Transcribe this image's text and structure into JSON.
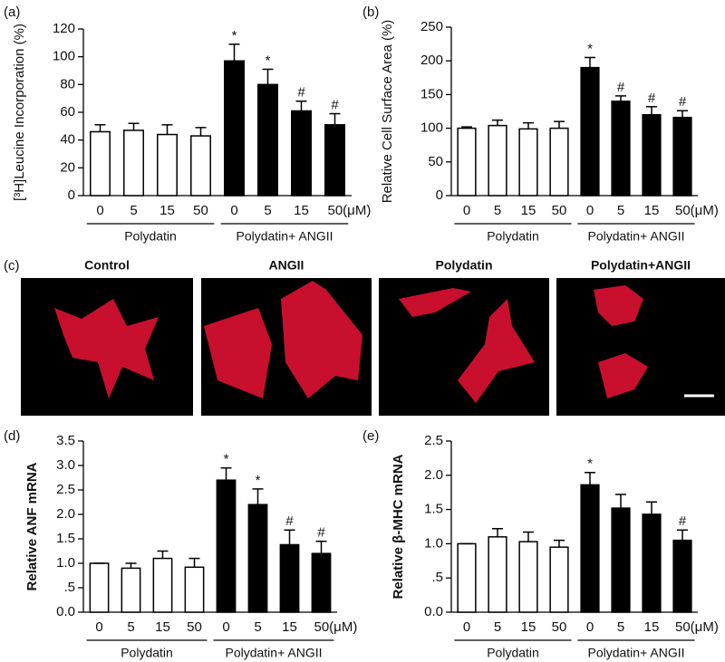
{
  "chart_data": [
    {
      "type": "bar",
      "panel_label": "(a)",
      "ylabel": "[³H]Leucine Incorporation (%)",
      "categories": [
        "0",
        "5",
        "15",
        "50",
        "0",
        "5",
        "15",
        "50(μM)"
      ],
      "values": [
        46,
        47,
        44,
        43,
        97,
        80,
        61,
        51
      ],
      "errors": [
        5,
        5,
        7,
        6,
        12,
        11,
        7,
        8
      ],
      "bar_colors": [
        "#ffffff",
        "#ffffff",
        "#ffffff",
        "#ffffff",
        "#000000",
        "#000000",
        "#000000",
        "#000000"
      ],
      "markers": [
        null,
        null,
        null,
        null,
        "*",
        "*",
        "#",
        "#"
      ],
      "groups": [
        "Polydatin",
        "Polydatin+ ANGII"
      ],
      "ylim": [
        0,
        120
      ],
      "yticks": [
        0,
        20,
        40,
        60,
        80,
        100,
        120
      ]
    },
    {
      "type": "bar",
      "panel_label": "(b)",
      "ylabel": "Relative Cell Surface Area (%)",
      "categories": [
        "0",
        "5",
        "15",
        "50",
        "0",
        "5",
        "15",
        "50(μM)"
      ],
      "values": [
        100,
        104,
        99,
        100,
        190,
        140,
        120,
        116
      ],
      "errors": [
        2,
        8,
        9,
        10,
        15,
        8,
        12,
        10
      ],
      "bar_colors": [
        "#ffffff",
        "#ffffff",
        "#ffffff",
        "#ffffff",
        "#000000",
        "#000000",
        "#000000",
        "#000000"
      ],
      "markers": [
        null,
        null,
        null,
        null,
        "*",
        "#",
        "#",
        "#"
      ],
      "groups": [
        "Polydatin",
        "Polydatin+ ANGII"
      ],
      "ylim": [
        0,
        250
      ],
      "yticks": [
        0,
        50,
        100,
        150,
        200,
        250
      ]
    },
    {
      "type": "bar",
      "panel_label": "(d)",
      "ylabel": "Relative ANF mRNA",
      "categories": [
        "0",
        "5",
        "15",
        "50",
        "0",
        "5",
        "15",
        "50(μM)"
      ],
      "values": [
        1.0,
        0.9,
        1.1,
        0.92,
        2.7,
        2.2,
        1.38,
        1.2
      ],
      "errors": [
        0,
        0.1,
        0.15,
        0.18,
        0.25,
        0.32,
        0.3,
        0.25
      ],
      "bar_colors": [
        "#ffffff",
        "#ffffff",
        "#ffffff",
        "#ffffff",
        "#000000",
        "#000000",
        "#000000",
        "#000000"
      ],
      "markers": [
        null,
        null,
        null,
        null,
        "*",
        "*",
        "#",
        "#"
      ],
      "groups": [
        "Polydatin",
        "Polydatin+ ANGII"
      ],
      "ylim": [
        0,
        3.5
      ],
      "yticks": [
        {
          "value": 0,
          "label": "0.0"
        },
        {
          "value": 0.5,
          "label": ".5"
        },
        {
          "value": 1,
          "label": "1.0"
        },
        1.5,
        {
          "value": 2,
          "label": "2.0"
        },
        2.5,
        {
          "value": 3,
          "label": "3.0"
        },
        3.5
      ]
    },
    {
      "type": "bar",
      "panel_label": "(e)",
      "ylabel": "Relative β-MHC mRNA",
      "categories": [
        "0",
        "5",
        "15",
        "50",
        "0",
        "5",
        "15",
        "50(μM)"
      ],
      "values": [
        1.0,
        1.1,
        1.03,
        0.95,
        1.86,
        1.52,
        1.43,
        1.05
      ],
      "errors": [
        0,
        0.12,
        0.14,
        0.1,
        0.18,
        0.2,
        0.18,
        0.15
      ],
      "bar_colors": [
        "#ffffff",
        "#ffffff",
        "#ffffff",
        "#ffffff",
        "#000000",
        "#000000",
        "#000000",
        "#000000"
      ],
      "markers": [
        null,
        null,
        null,
        null,
        "*",
        null,
        null,
        "#"
      ],
      "groups": [
        "Polydatin",
        "Polydatin+ ANGII"
      ],
      "ylim": [
        0,
        2.5
      ],
      "yticks": [
        {
          "value": 0,
          "label": "0.0"
        },
        {
          "value": 0.5,
          "label": ".5"
        },
        {
          "value": 1,
          "label": "1.0"
        },
        1.5,
        {
          "value": 2,
          "label": "2.0"
        },
        2.5
      ]
    }
  ],
  "images": {
    "panel_label": "(c)",
    "titles": [
      "Control",
      "ANGII",
      "Polydatin",
      "Polydatin+ANGII"
    ]
  }
}
